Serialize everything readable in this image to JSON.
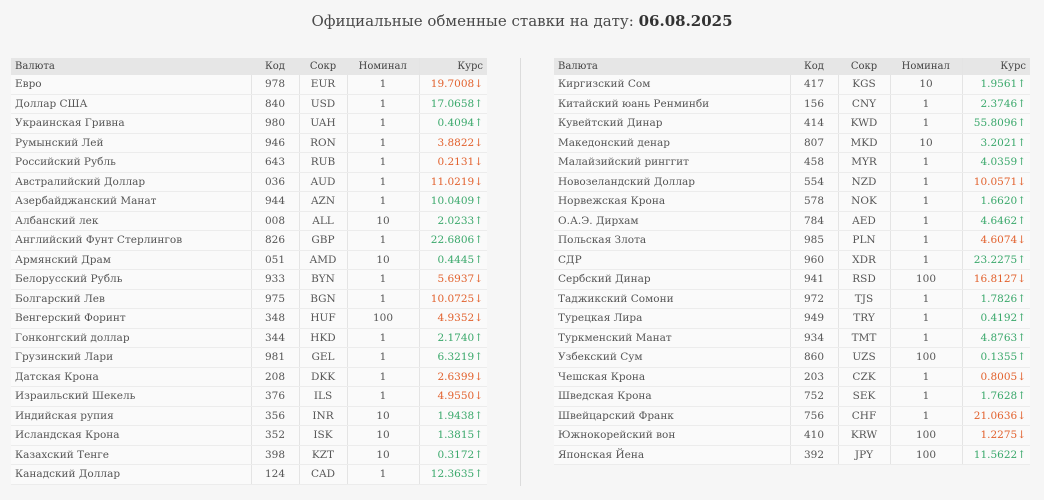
{
  "header": {
    "title_prefix": "Официальные обменные ставки на дату:",
    "date": "06.08.2025"
  },
  "columns": {
    "name": "Валюта",
    "code": "Код",
    "abbr": "Сокр",
    "nominal": "Номинал",
    "rate": "Курс"
  },
  "colors": {
    "up": "#3aa86b",
    "down": "#e2612d"
  },
  "left_rows": [
    {
      "name": "Евро",
      "code": "978",
      "abbr": "EUR",
      "nominal": "1",
      "rate": "19.7008",
      "trend": "down"
    },
    {
      "name": "Доллар США",
      "code": "840",
      "abbr": "USD",
      "nominal": "1",
      "rate": "17.0658",
      "trend": "up"
    },
    {
      "name": "Украинская Гривна",
      "code": "980",
      "abbr": "UAH",
      "nominal": "1",
      "rate": "0.4094",
      "trend": "up"
    },
    {
      "name": "Румынский Лей",
      "code": "946",
      "abbr": "RON",
      "nominal": "1",
      "rate": "3.8822",
      "trend": "down"
    },
    {
      "name": "Российский Рубль",
      "code": "643",
      "abbr": "RUB",
      "nominal": "1",
      "rate": "0.2131",
      "trend": "down"
    },
    {
      "name": "Австралийский Доллар",
      "code": "036",
      "abbr": "AUD",
      "nominal": "1",
      "rate": "11.0219",
      "trend": "down"
    },
    {
      "name": "Азербайджанский Манат",
      "code": "944",
      "abbr": "AZN",
      "nominal": "1",
      "rate": "10.0409",
      "trend": "up"
    },
    {
      "name": "Албанский лек",
      "code": "008",
      "abbr": "ALL",
      "nominal": "10",
      "rate": "2.0233",
      "trend": "up"
    },
    {
      "name": "Английский Фунт Стерлингов",
      "code": "826",
      "abbr": "GBP",
      "nominal": "1",
      "rate": "22.6806",
      "trend": "up"
    },
    {
      "name": "Армянский Драм",
      "code": "051",
      "abbr": "AMD",
      "nominal": "10",
      "rate": "0.4445",
      "trend": "up"
    },
    {
      "name": "Белорусский Рубль",
      "code": "933",
      "abbr": "BYN",
      "nominal": "1",
      "rate": "5.6937",
      "trend": "down"
    },
    {
      "name": "Болгарский Лев",
      "code": "975",
      "abbr": "BGN",
      "nominal": "1",
      "rate": "10.0725",
      "trend": "down"
    },
    {
      "name": "Венгерский Форинт",
      "code": "348",
      "abbr": "HUF",
      "nominal": "100",
      "rate": "4.9352",
      "trend": "down"
    },
    {
      "name": "Гонконгский доллар",
      "code": "344",
      "abbr": "HKD",
      "nominal": "1",
      "rate": "2.1740",
      "trend": "up"
    },
    {
      "name": "Грузинский Лари",
      "code": "981",
      "abbr": "GEL",
      "nominal": "1",
      "rate": "6.3219",
      "trend": "up"
    },
    {
      "name": "Датская Крона",
      "code": "208",
      "abbr": "DKK",
      "nominal": "1",
      "rate": "2.6399",
      "trend": "down"
    },
    {
      "name": "Израильский Шекель",
      "code": "376",
      "abbr": "ILS",
      "nominal": "1",
      "rate": "4.9550",
      "trend": "down"
    },
    {
      "name": "Индийская рупия",
      "code": "356",
      "abbr": "INR",
      "nominal": "10",
      "rate": "1.9438",
      "trend": "up"
    },
    {
      "name": "Исландская Крона",
      "code": "352",
      "abbr": "ISK",
      "nominal": "10",
      "rate": "1.3815",
      "trend": "up"
    },
    {
      "name": "Казахский Тенге",
      "code": "398",
      "abbr": "KZT",
      "nominal": "10",
      "rate": "0.3172",
      "trend": "up"
    },
    {
      "name": "Канадский Доллар",
      "code": "124",
      "abbr": "CAD",
      "nominal": "1",
      "rate": "12.3635",
      "trend": "up"
    }
  ],
  "right_rows": [
    {
      "name": "Киргизский Сом",
      "code": "417",
      "abbr": "KGS",
      "nominal": "10",
      "rate": "1.9561",
      "trend": "up"
    },
    {
      "name": "Китайский юань Ренминби",
      "code": "156",
      "abbr": "CNY",
      "nominal": "1",
      "rate": "2.3746",
      "trend": "up"
    },
    {
      "name": "Кувейтский Динар",
      "code": "414",
      "abbr": "KWD",
      "nominal": "1",
      "rate": "55.8096",
      "trend": "up"
    },
    {
      "name": "Македонский денар",
      "code": "807",
      "abbr": "MKD",
      "nominal": "10",
      "rate": "3.2021",
      "trend": "up"
    },
    {
      "name": "Малайзийский ринггит",
      "code": "458",
      "abbr": "MYR",
      "nominal": "1",
      "rate": "4.0359",
      "trend": "up"
    },
    {
      "name": "Новозеландский Доллар",
      "code": "554",
      "abbr": "NZD",
      "nominal": "1",
      "rate": "10.0571",
      "trend": "down"
    },
    {
      "name": "Норвежская Крона",
      "code": "578",
      "abbr": "NOK",
      "nominal": "1",
      "rate": "1.6620",
      "trend": "up"
    },
    {
      "name": "О.А.Э. Дирхам",
      "code": "784",
      "abbr": "AED",
      "nominal": "1",
      "rate": "4.6462",
      "trend": "up"
    },
    {
      "name": "Польская Злота",
      "code": "985",
      "abbr": "PLN",
      "nominal": "1",
      "rate": "4.6074",
      "trend": "down"
    },
    {
      "name": "СДР",
      "code": "960",
      "abbr": "XDR",
      "nominal": "1",
      "rate": "23.2275",
      "trend": "up"
    },
    {
      "name": "Сербский Динар",
      "code": "941",
      "abbr": "RSD",
      "nominal": "100",
      "rate": "16.8127",
      "trend": "down"
    },
    {
      "name": "Таджикский Сомони",
      "code": "972",
      "abbr": "TJS",
      "nominal": "1",
      "rate": "1.7826",
      "trend": "up"
    },
    {
      "name": "Турецкая Лира",
      "code": "949",
      "abbr": "TRY",
      "nominal": "1",
      "rate": "0.4192",
      "trend": "up"
    },
    {
      "name": "Туркменский Манат",
      "code": "934",
      "abbr": "TMT",
      "nominal": "1",
      "rate": "4.8763",
      "trend": "up"
    },
    {
      "name": "Узбекский Сум",
      "code": "860",
      "abbr": "UZS",
      "nominal": "100",
      "rate": "0.1355",
      "trend": "up"
    },
    {
      "name": "Чешская Крона",
      "code": "203",
      "abbr": "CZK",
      "nominal": "1",
      "rate": "0.8005",
      "trend": "down"
    },
    {
      "name": "Шведская Крона",
      "code": "752",
      "abbr": "SEK",
      "nominal": "1",
      "rate": "1.7628",
      "trend": "up"
    },
    {
      "name": "Швейцарский Франк",
      "code": "756",
      "abbr": "CHF",
      "nominal": "1",
      "rate": "21.0636",
      "trend": "down"
    },
    {
      "name": "Южнокорейский вон",
      "code": "410",
      "abbr": "KRW",
      "nominal": "100",
      "rate": "1.2275",
      "trend": "down"
    },
    {
      "name": "Японская Йена",
      "code": "392",
      "abbr": "JPY",
      "nominal": "100",
      "rate": "11.5622",
      "trend": "up"
    }
  ]
}
